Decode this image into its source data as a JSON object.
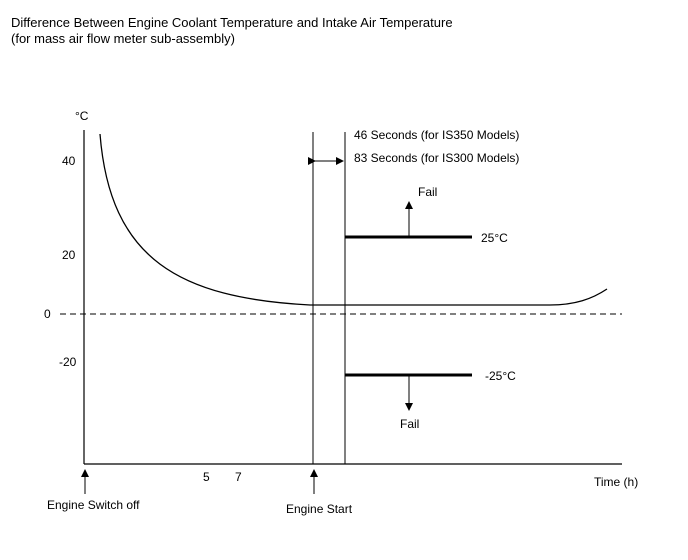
{
  "header": {
    "title": "Difference Between Engine Coolant Temperature and Intake Air Temperature",
    "subtitle": "(for mass air flow meter sub-assembly)"
  },
  "axes": {
    "y_unit": "°C",
    "y_ticks": [
      "40",
      "20",
      "0",
      "-20"
    ],
    "x_label": "Time (h)",
    "x_ticks": [
      "5",
      "7"
    ]
  },
  "events": {
    "switch_off": "Engine Switch off",
    "start": "Engine Start"
  },
  "window": {
    "line1": "46 Seconds (for IS350 Models)",
    "line2": "83 Seconds (for IS300 Models)"
  },
  "thresholds": {
    "upper_label": "25°C",
    "lower_label": "-25°C",
    "fail_upper": "Fail",
    "fail_lower": "Fail"
  }
}
